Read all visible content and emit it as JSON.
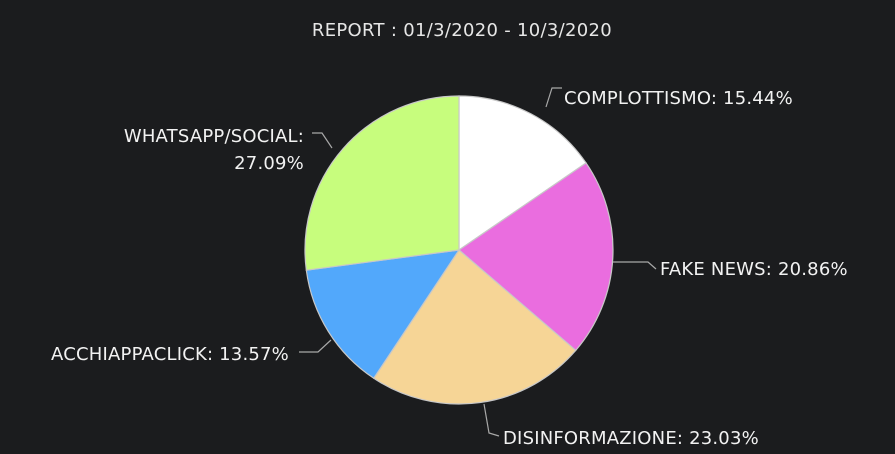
{
  "chart_data": {
    "type": "pie",
    "title": "REPORT :  01/3/2020 - 10/3/2020",
    "slices": [
      {
        "label": "COMPLOTTISMO",
        "value": 15.44,
        "value_label": "15.44%",
        "color": "#ffffff"
      },
      {
        "label": "FAKE NEWS",
        "value": 20.86,
        "value_label": "20.86%",
        "color": "#ea6ddf"
      },
      {
        "label": "DISINFORMAZIONE",
        "value": 23.03,
        "value_label": "23.03%",
        "color": "#f6d596"
      },
      {
        "label": "ACCHIAPPACLICK",
        "value": 13.57,
        "value_label": "13.57%",
        "color": "#52a8fb"
      },
      {
        "label": "WHATSAPP/SOCIAL",
        "value": 27.09,
        "value_label": "27.09%",
        "color": "#c7fd7d"
      }
    ],
    "legend": "none",
    "background": "#1b1c1e"
  }
}
